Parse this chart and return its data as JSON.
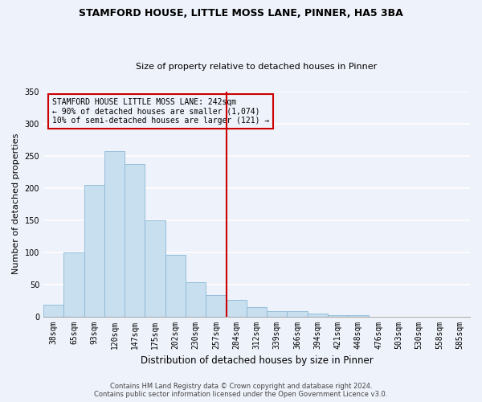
{
  "title": "STAMFORD HOUSE, LITTLE MOSS LANE, PINNER, HA5 3BA",
  "subtitle": "Size of property relative to detached houses in Pinner",
  "xlabel": "Distribution of detached houses by size in Pinner",
  "ylabel": "Number of detached properties",
  "bar_labels": [
    "38sqm",
    "65sqm",
    "93sqm",
    "120sqm",
    "147sqm",
    "175sqm",
    "202sqm",
    "230sqm",
    "257sqm",
    "284sqm",
    "312sqm",
    "339sqm",
    "366sqm",
    "394sqm",
    "421sqm",
    "448sqm",
    "476sqm",
    "503sqm",
    "530sqm",
    "558sqm",
    "585sqm"
  ],
  "bar_heights": [
    18,
    100,
    205,
    257,
    237,
    150,
    96,
    53,
    33,
    26,
    15,
    8,
    8,
    5,
    2,
    2,
    0,
    0,
    0,
    0,
    0
  ],
  "bar_color": "#c8dff0",
  "bar_edgecolor": "#89b8d4",
  "vline_x": 8.5,
  "vline_color": "#cc0000",
  "annotation_text": "STAMFORD HOUSE LITTLE MOSS LANE: 242sqm\n← 90% of detached houses are smaller (1,074)\n10% of semi-detached houses are larger (121) →",
  "annotation_box_color": "#cc0000",
  "ylim": [
    0,
    350
  ],
  "yticks": [
    0,
    50,
    100,
    150,
    200,
    250,
    300,
    350
  ],
  "footer_line1": "Contains HM Land Registry data © Crown copyright and database right 2024.",
  "footer_line2": "Contains public sector information licensed under the Open Government Licence v3.0.",
  "background_color": "#eef2fa",
  "grid_color": "#ffffff",
  "title_fontsize": 9,
  "subtitle_fontsize": 8,
  "xlabel_fontsize": 8.5,
  "ylabel_fontsize": 8,
  "tick_labelsize": 7,
  "annotation_fontsize": 7,
  "footer_fontsize": 6
}
